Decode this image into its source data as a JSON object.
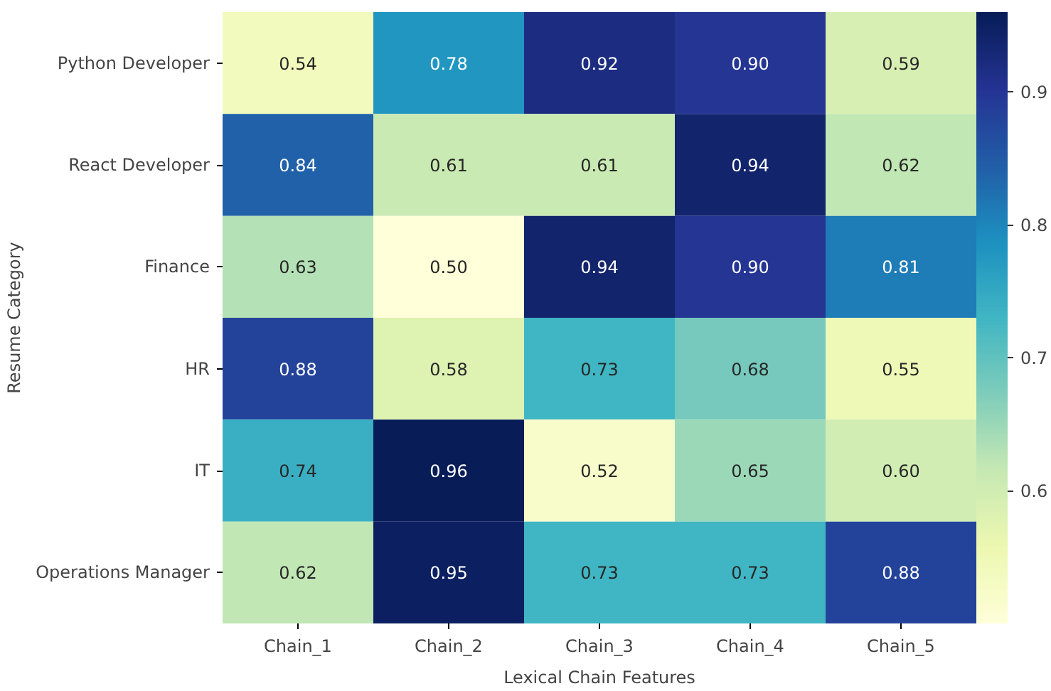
{
  "chart_data": {
    "type": "heatmap",
    "xlabel": "Lexical Chain Features",
    "ylabel": "Resume Category",
    "categories": [
      "Chain_1",
      "Chain_2",
      "Chain_3",
      "Chain_4",
      "Chain_5"
    ],
    "y_categories": [
      "Python Developer",
      "React Developer",
      "Finance",
      "HR",
      "IT",
      "Operations Manager"
    ],
    "cells": [
      [
        0.54,
        0.78,
        0.92,
        0.9,
        0.59
      ],
      [
        0.84,
        0.61,
        0.61,
        0.94,
        0.62
      ],
      [
        0.63,
        0.5,
        0.94,
        0.9,
        0.81
      ],
      [
        0.88,
        0.58,
        0.73,
        0.68,
        0.55
      ],
      [
        0.74,
        0.96,
        0.52,
        0.65,
        0.6
      ],
      [
        0.62,
        0.95,
        0.73,
        0.73,
        0.88
      ]
    ],
    "cell_labels": [
      [
        "0.54",
        "0.78",
        "0.92",
        "0.90",
        "0.59"
      ],
      [
        "0.84",
        "0.61",
        "0.61",
        "0.94",
        "0.62"
      ],
      [
        "0.63",
        "0.50",
        "0.94",
        "0.90",
        "0.81"
      ],
      [
        "0.88",
        "0.58",
        "0.73",
        "0.68",
        "0.55"
      ],
      [
        "0.74",
        "0.96",
        "0.52",
        "0.65",
        "0.60"
      ],
      [
        "0.62",
        "0.95",
        "0.73",
        "0.73",
        "0.88"
      ]
    ],
    "data_labels": true,
    "clim": [
      0.5,
      0.96
    ],
    "cticks": [
      0.6,
      0.7,
      0.8,
      0.9
    ]
  }
}
